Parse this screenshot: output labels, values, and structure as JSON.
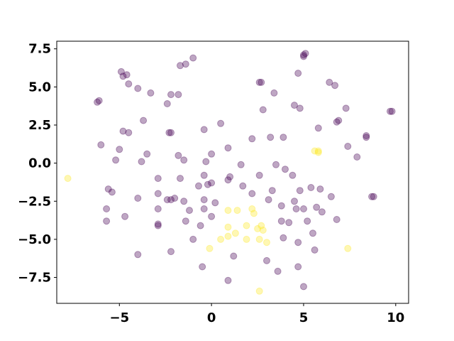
{
  "chart_data": {
    "type": "scatter",
    "title": "",
    "xlabel": "",
    "ylabel": "",
    "xlim": [
      -8.4,
      10.7
    ],
    "ylim": [
      -9.2,
      8.0
    ],
    "xticks": [
      -5,
      0,
      5,
      10
    ],
    "xtick_labels": [
      "−5",
      "0",
      "5",
      "10"
    ],
    "yticks": [
      -7.5,
      -5.0,
      -2.5,
      0.0,
      2.5,
      5.0,
      7.5
    ],
    "ytick_labels": [
      "−7.5",
      "−5.0",
      "−2.5",
      "0.0",
      "2.5",
      "5.0",
      "7.5"
    ],
    "grid": false,
    "legend": "none",
    "marker_alpha": 0.35,
    "series": [
      {
        "color": "#440154",
        "points": [
          [
            -4.9,
            6.0
          ],
          [
            -4.8,
            5.7
          ],
          [
            -4.6,
            5.8
          ],
          [
            -4.5,
            5.2
          ],
          [
            -4.0,
            4.9
          ],
          [
            -3.3,
            4.6
          ],
          [
            -2.4,
            3.9
          ],
          [
            -2.2,
            4.5
          ],
          [
            -1.8,
            4.5
          ],
          [
            -1.7,
            6.4
          ],
          [
            -1.4,
            6.5
          ],
          [
            -1.0,
            6.9
          ],
          [
            -6.2,
            4.0
          ],
          [
            -6.1,
            4.1
          ],
          [
            -4.8,
            2.1
          ],
          [
            -4.5,
            2.0
          ],
          [
            -3.7,
            2.8
          ],
          [
            -2.2,
            2.0
          ],
          [
            -2.3,
            2.0
          ],
          [
            -6.0,
            1.2
          ],
          [
            -5.0,
            0.9
          ],
          [
            -3.5,
            0.6
          ],
          [
            -5.2,
            0.2
          ],
          [
            -3.8,
            0.1
          ],
          [
            -1.8,
            0.5
          ],
          [
            -1.5,
            0.2
          ],
          [
            -0.4,
            2.2
          ],
          [
            0.5,
            2.6
          ],
          [
            0.0,
            0.6
          ],
          [
            -0.3,
            0.1
          ],
          [
            0.9,
            1.0
          ],
          [
            -2.9,
            -1.0
          ],
          [
            -1.7,
            -1.0
          ],
          [
            -0.7,
            -1.5
          ],
          [
            -0.4,
            -0.8
          ],
          [
            -0.2,
            -1.4
          ],
          [
            0.0,
            -1.3
          ],
          [
            0.9,
            -1.1
          ],
          [
            1.0,
            -0.9
          ],
          [
            1.6,
            -0.1
          ],
          [
            1.7,
            -1.5
          ],
          [
            -5.6,
            -1.7
          ],
          [
            -5.4,
            -1.9
          ],
          [
            -4.0,
            -2.3
          ],
          [
            -2.9,
            -2.0
          ],
          [
            -2.4,
            -2.4
          ],
          [
            -2.2,
            -2.4
          ],
          [
            -2.0,
            -2.3
          ],
          [
            -1.5,
            -2.5
          ],
          [
            -0.4,
            -2.4
          ],
          [
            0.2,
            -2.6
          ],
          [
            -5.7,
            -3.0
          ],
          [
            -4.7,
            -3.5
          ],
          [
            -2.9,
            -3.0
          ],
          [
            -1.2,
            -3.1
          ],
          [
            -0.4,
            -3.0
          ],
          [
            -5.7,
            -3.8
          ],
          [
            -2.9,
            -4.1
          ],
          [
            -2.9,
            -4.0
          ],
          [
            -1.4,
            -3.8
          ],
          [
            -0.6,
            -4.1
          ],
          [
            -1.0,
            -5.0
          ],
          [
            0.0,
            -3.5
          ],
          [
            -4.0,
            -6.0
          ],
          [
            -2.2,
            -5.8
          ],
          [
            -0.5,
            -6.8
          ],
          [
            0.9,
            -7.7
          ],
          [
            1.2,
            -6.1
          ],
          [
            2.2,
            1.6
          ],
          [
            3.2,
            1.7
          ],
          [
            3.9,
            1.7
          ],
          [
            2.6,
            -0.8
          ],
          [
            3.5,
            -0.1
          ],
          [
            4.0,
            -0.4
          ],
          [
            4.4,
            -0.8
          ],
          [
            4.8,
            -1.8
          ],
          [
            5.4,
            -1.6
          ],
          [
            5.9,
            -1.7
          ],
          [
            6.5,
            -2.2
          ],
          [
            7.4,
            1.1
          ],
          [
            7.9,
            0.4
          ],
          [
            5.8,
            2.3
          ],
          [
            6.8,
            2.7
          ],
          [
            6.9,
            2.8
          ],
          [
            7.3,
            3.6
          ],
          [
            8.4,
            1.7
          ],
          [
            8.4,
            1.8
          ],
          [
            4.5,
            3.8
          ],
          [
            4.8,
            3.6
          ],
          [
            2.8,
            3.5
          ],
          [
            3.4,
            4.6
          ],
          [
            2.6,
            5.3
          ],
          [
            2.7,
            5.3
          ],
          [
            4.7,
            5.9
          ],
          [
            5.0,
            7.1
          ],
          [
            5.1,
            7.2
          ],
          [
            5.0,
            7.0
          ],
          [
            6.4,
            5.3
          ],
          [
            6.7,
            5.1
          ],
          [
            9.7,
            3.4
          ],
          [
            9.8,
            3.4
          ],
          [
            2.2,
            -2.0
          ],
          [
            3.1,
            -2.4
          ],
          [
            3.3,
            -1.8
          ],
          [
            3.8,
            -2.8
          ],
          [
            4.5,
            -2.5
          ],
          [
            4.6,
            -3.0
          ],
          [
            5.0,
            -3.0
          ],
          [
            5.7,
            -2.9
          ],
          [
            6.0,
            -3.2
          ],
          [
            6.8,
            -3.7
          ],
          [
            3.8,
            -3.8
          ],
          [
            4.2,
            -3.9
          ],
          [
            5.2,
            -3.8
          ],
          [
            3.9,
            -4.9
          ],
          [
            4.7,
            -5.2
          ],
          [
            5.5,
            -4.6
          ],
          [
            5.6,
            -5.7
          ],
          [
            3.0,
            -6.4
          ],
          [
            3.6,
            -7.1
          ],
          [
            4.7,
            -6.8
          ],
          [
            5.0,
            -8.1
          ],
          [
            8.8,
            -2.2
          ],
          [
            8.7,
            -2.2
          ]
        ]
      },
      {
        "color": "#fde725",
        "points": [
          [
            -7.8,
            -1.0
          ],
          [
            0.9,
            -3.1
          ],
          [
            1.4,
            -3.1
          ],
          [
            2.2,
            -3.0
          ],
          [
            2.3,
            -3.3
          ],
          [
            0.9,
            -4.2
          ],
          [
            1.3,
            -4.6
          ],
          [
            0.9,
            -4.8
          ],
          [
            0.5,
            -5.0
          ],
          [
            -0.1,
            -5.6
          ],
          [
            1.9,
            -4.1
          ],
          [
            2.5,
            -4.3
          ],
          [
            2.7,
            -4.1
          ],
          [
            2.8,
            -4.4
          ],
          [
            1.9,
            -5.0
          ],
          [
            2.6,
            -5.0
          ],
          [
            3.0,
            -5.2
          ],
          [
            2.6,
            -8.4
          ],
          [
            5.6,
            0.8
          ],
          [
            5.8,
            0.8
          ],
          [
            5.8,
            0.7
          ],
          [
            7.4,
            -5.6
          ]
        ]
      }
    ]
  }
}
